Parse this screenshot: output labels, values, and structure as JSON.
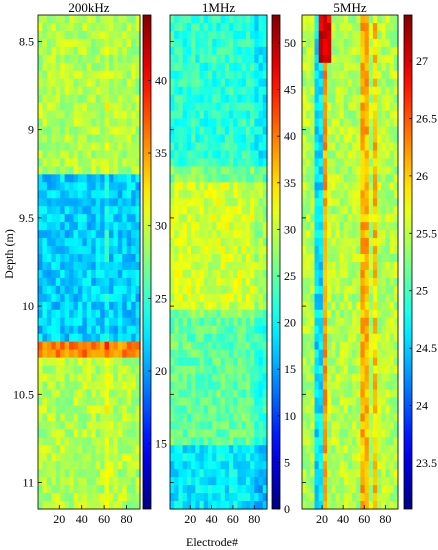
{
  "chart_data": {
    "type": "heatmap",
    "ylabel": "Depth (m)",
    "xlabel": "Electrode#",
    "y_axis": {
      "range": [
        8.35,
        11.15
      ],
      "direction": "down",
      "ticks": [
        8.5,
        9,
        9.5,
        10,
        10.5,
        11
      ],
      "tick_labels": [
        "8.5",
        "9",
        "9.5",
        "10",
        "10.5",
        "11"
      ]
    },
    "x_axis": {
      "range": [
        1,
        92
      ],
      "ticks": [
        20,
        40,
        60,
        80
      ],
      "tick_labels": [
        "20",
        "40",
        "60",
        "80"
      ]
    },
    "colormap": "jet",
    "panels": [
      {
        "title": "200kHz",
        "colorbar": {
          "range": [
            10.5,
            44.5
          ],
          "ticks": [
            15,
            20,
            25,
            30,
            35,
            40
          ],
          "tick_labels": [
            "15",
            "20",
            "25",
            "30",
            "35",
            "40"
          ]
        },
        "base_value": 27
      },
      {
        "title": "1MHz",
        "colorbar": {
          "range": [
            0,
            53
          ],
          "ticks": [
            0,
            5,
            10,
            15,
            20,
            25,
            30,
            35,
            40,
            45,
            50
          ],
          "tick_labels": [
            "0",
            "5",
            "10",
            "15",
            "20",
            "25",
            "30",
            "35",
            "40",
            "45",
            "50"
          ]
        },
        "base_value": 21
      },
      {
        "title": "5MHz",
        "colorbar": {
          "range": [
            23.1,
            27.4
          ],
          "ticks": [
            23.5,
            24,
            24.5,
            25,
            25.5,
            26,
            26.5,
            27
          ],
          "tick_labels": [
            "23.5",
            "24",
            "24.5",
            "25",
            "25.5",
            "26",
            "26.5",
            "27"
          ]
        },
        "base_value": 25.4
      }
    ]
  }
}
